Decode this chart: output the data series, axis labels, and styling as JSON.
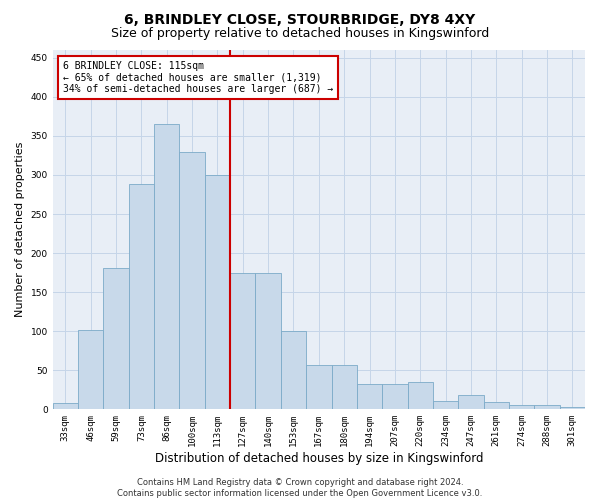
{
  "title": "6, BRINDLEY CLOSE, STOURBRIDGE, DY8 4XY",
  "subtitle": "Size of property relative to detached houses in Kingswinford",
  "xlabel": "Distribution of detached houses by size in Kingswinford",
  "ylabel": "Number of detached properties",
  "categories": [
    "33sqm",
    "46sqm",
    "59sqm",
    "73sqm",
    "86sqm",
    "100sqm",
    "113sqm",
    "127sqm",
    "140sqm",
    "153sqm",
    "167sqm",
    "180sqm",
    "194sqm",
    "207sqm",
    "220sqm",
    "234sqm",
    "247sqm",
    "261sqm",
    "274sqm",
    "288sqm",
    "301sqm"
  ],
  "values": [
    8,
    101,
    181,
    289,
    365,
    329,
    300,
    175,
    175,
    100,
    57,
    57,
    33,
    33,
    35,
    11,
    18,
    10,
    5,
    6,
    3
  ],
  "bar_color": "#c8d9ea",
  "bar_edge_color": "#7baac8",
  "vline_x": 6.5,
  "vline_color": "#cc0000",
  "annotation_text": "6 BRINDLEY CLOSE: 115sqm\n← 65% of detached houses are smaller (1,319)\n34% of semi-detached houses are larger (687) →",
  "annotation_box_color": "#ffffff",
  "annotation_box_edge": "#cc0000",
  "ylim": [
    0,
    460
  ],
  "yticks": [
    0,
    50,
    100,
    150,
    200,
    250,
    300,
    350,
    400,
    450
  ],
  "grid_color": "#c5d5e8",
  "background_color": "#e8eef6",
  "footnote": "Contains HM Land Registry data © Crown copyright and database right 2024.\nContains public sector information licensed under the Open Government Licence v3.0.",
  "title_fontsize": 10,
  "subtitle_fontsize": 9,
  "xlabel_fontsize": 8.5,
  "ylabel_fontsize": 8,
  "tick_fontsize": 6.5,
  "footnote_fontsize": 6,
  "ann_fontsize": 7
}
